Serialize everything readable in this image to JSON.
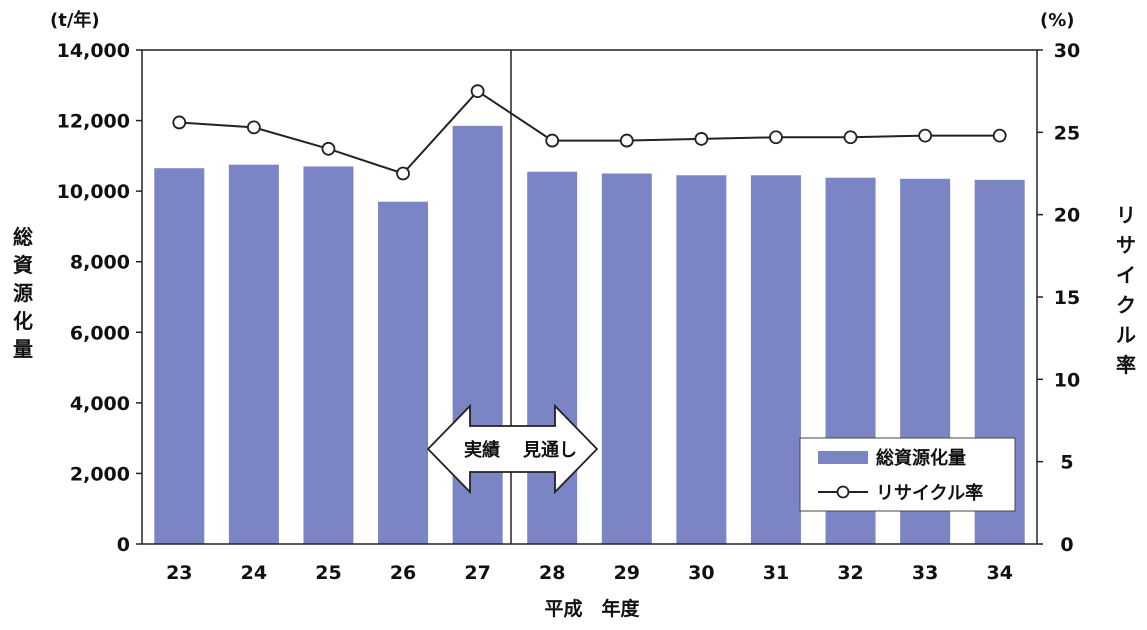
{
  "chart_data": {
    "type": "bar+line",
    "categories": [
      "23",
      "24",
      "25",
      "26",
      "27",
      "28",
      "29",
      "30",
      "31",
      "32",
      "33",
      "34"
    ],
    "series": [
      {
        "name": "総資源化量",
        "type": "bar",
        "axis": "left",
        "color": "#7b85c6",
        "values": [
          10650,
          10750,
          10700,
          9700,
          11850,
          10550,
          10500,
          10450,
          10450,
          10380,
          10350,
          10320
        ]
      },
      {
        "name": "リサイクル率",
        "type": "line",
        "axis": "right",
        "color": "#222222",
        "values": [
          25.6,
          25.3,
          24.0,
          22.5,
          27.5,
          24.5,
          24.5,
          24.6,
          24.7,
          24.7,
          24.8,
          24.8
        ]
      }
    ],
    "y_left": {
      "unit": "(t/年)",
      "label": "総資源化量",
      "range": [
        0,
        14000
      ],
      "ticks": [
        "0",
        "2,000",
        "4,000",
        "6,000",
        "8,000",
        "10,000",
        "12,000",
        "14,000"
      ]
    },
    "y_right": {
      "unit": "(%)",
      "label": "リサイクル率",
      "range": [
        0,
        30
      ],
      "ticks": [
        "0",
        "5",
        "10",
        "15",
        "20",
        "25",
        "30"
      ]
    },
    "xlabel": "平成　年度",
    "divider_after_category": "27",
    "annotation": {
      "left": "実績",
      "right": "見通し"
    },
    "legend": {
      "position": "bottom-right",
      "entries": [
        "総資源化量",
        "リサイクル率"
      ]
    },
    "grid": false
  }
}
